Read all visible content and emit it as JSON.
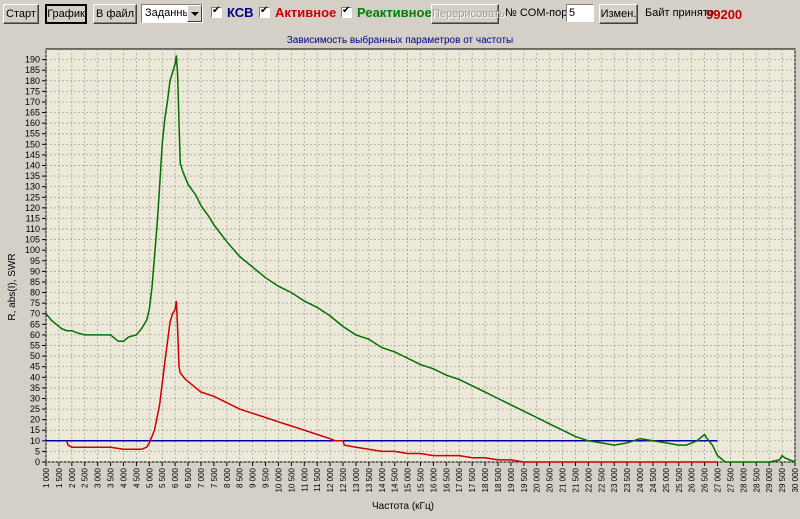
{
  "toolbar": {
    "start_label": "Старт",
    "graph_label": "График",
    "tofile_label": "В файл",
    "mode_value": "Заданный",
    "ksv_label": "КСВ",
    "active_label": "Активное",
    "reactive_label": "Реактивное",
    "redraw_label": "Перерисовать",
    "comport_label": "№ COM-порта:",
    "comport_value": "5",
    "change_label": "Измен.",
    "bytes_label": "Байт принято:",
    "bytes_value": "99200"
  },
  "colors": {
    "ksv": "#0000aa",
    "active": "#cc0000",
    "reactive": "#007000",
    "plot_bg": "#ece9d8"
  },
  "chart_data": {
    "type": "line",
    "title": "Зависимость выбранных параметров от частоты",
    "xlabel": "Частота (кГц)",
    "ylabel": "R, abs(I), SWR",
    "xlim": [
      1000,
      30000
    ],
    "ylim": [
      0,
      195
    ],
    "x_ticks": [
      "1 000",
      "1 500",
      "2 000",
      "2 500",
      "3 000",
      "3 500",
      "4 000",
      "4 500",
      "5 000",
      "5 500",
      "6 000",
      "6 500",
      "7 000",
      "7 500",
      "8 000",
      "8 500",
      "9 000",
      "9 500",
      "10 000",
      "10 500",
      "11 000",
      "11 500",
      "12 000",
      "12 500",
      "13 000",
      "13 500",
      "14 000",
      "14 500",
      "15 000",
      "15 500",
      "16 000",
      "16 500",
      "17 000",
      "17 500",
      "18 000",
      "18 500",
      "19 000",
      "19 500",
      "20 000",
      "20 500",
      "21 000",
      "21 500",
      "22 000",
      "22 500",
      "23 000",
      "23 500",
      "24 000",
      "24 500",
      "25 000",
      "25 500",
      "26 000",
      "26 500",
      "27 000",
      "27 500",
      "28 000",
      "28 500",
      "29 000",
      "29 500",
      "30 000"
    ],
    "y_ticks": [
      "0",
      "5",
      "10",
      "15",
      "20",
      "25",
      "30",
      "35",
      "40",
      "45",
      "50",
      "55",
      "60",
      "65",
      "70",
      "75",
      "80",
      "85",
      "90",
      "95",
      "100",
      "105",
      "110",
      "115",
      "120",
      "125",
      "130",
      "135",
      "140",
      "145",
      "150",
      "155",
      "160",
      "165",
      "170",
      "175",
      "180",
      "185",
      "190"
    ],
    "series": [
      {
        "name": "КСВ",
        "color": "#0000aa",
        "x": [
          1000,
          27000
        ],
        "y": [
          10,
          10
        ]
      },
      {
        "name": "Активное",
        "color": "#cc0000",
        "x": [
          1800,
          1850,
          2000,
          3000,
          3500,
          4000,
          4500,
          4700,
          4900,
          5000,
          5200,
          5400,
          5600,
          5800,
          5900,
          6000,
          6050,
          6100,
          6150,
          6200,
          6400,
          6600,
          6800,
          7000,
          7500,
          8000,
          8500,
          9000,
          9500,
          10000,
          10500,
          11000,
          11500,
          12000,
          12200,
          12500,
          12550,
          13000,
          13500,
          14000,
          14500,
          15000,
          15500,
          16000,
          16500,
          17000,
          17500,
          18000,
          18500,
          19000,
          19500,
          20000,
          21000,
          22000,
          23000,
          24000,
          25000,
          26000,
          27000
        ],
        "y": [
          10,
          8,
          7,
          7,
          7,
          6,
          6,
          6,
          7,
          9,
          15,
          27,
          47,
          66,
          70,
          72,
          76,
          62,
          45,
          42,
          39,
          37,
          35,
          33,
          31,
          28,
          25,
          23,
          21,
          19,
          17,
          15,
          13,
          11,
          10,
          10,
          8,
          7,
          6,
          5,
          5,
          4,
          4,
          3,
          3,
          3,
          2,
          2,
          1,
          1,
          0,
          0,
          0,
          0,
          0,
          0,
          0,
          0,
          0
        ]
      },
      {
        "name": "Реактивное",
        "color": "#007000",
        "x": [
          1000,
          1200,
          1400,
          1600,
          1800,
          2000,
          2200,
          2500,
          2800,
          3000,
          3500,
          3800,
          4000,
          4200,
          4500,
          4700,
          4900,
          5000,
          5100,
          5200,
          5300,
          5400,
          5500,
          5600,
          5700,
          5800,
          5900,
          6000,
          6050,
          6100,
          6150,
          6200,
          6300,
          6500,
          6800,
          7000,
          7300,
          7500,
          8000,
          8500,
          9000,
          9500,
          10000,
          10500,
          11000,
          11500,
          12000,
          12500,
          13000,
          13500,
          14000,
          14500,
          15000,
          15500,
          16000,
          16500,
          17000,
          17500,
          18000,
          18500,
          19000,
          19500,
          20000,
          20500,
          21000,
          21500,
          22000,
          22500,
          23000,
          23500,
          24000,
          24500,
          25000,
          25500,
          25800,
          26000,
          26200,
          26400,
          26500,
          26600,
          26800,
          27000,
          27300,
          28000,
          29000,
          29400,
          29500,
          29600,
          30000
        ],
        "y": [
          70,
          67,
          65,
          63,
          62,
          62,
          61,
          60,
          60,
          60,
          60,
          57,
          57,
          59,
          60,
          63,
          67,
          72,
          82,
          97,
          112,
          130,
          150,
          162,
          170,
          180,
          184,
          188,
          192,
          182,
          160,
          141,
          137,
          131,
          126,
          121,
          116,
          112,
          104,
          97,
          92,
          87,
          83,
          80,
          76,
          73,
          69,
          64,
          60,
          58,
          54,
          52,
          49,
          46,
          44,
          41,
          39,
          36,
          33,
          30,
          27,
          24,
          21,
          18,
          15,
          12,
          10,
          9,
          8,
          9,
          11,
          10,
          9,
          8,
          8,
          9,
          10,
          12,
          13,
          11,
          8,
          3,
          0,
          0,
          0,
          1,
          3,
          2,
          0
        ]
      }
    ],
    "grid": true,
    "legend": "none"
  }
}
